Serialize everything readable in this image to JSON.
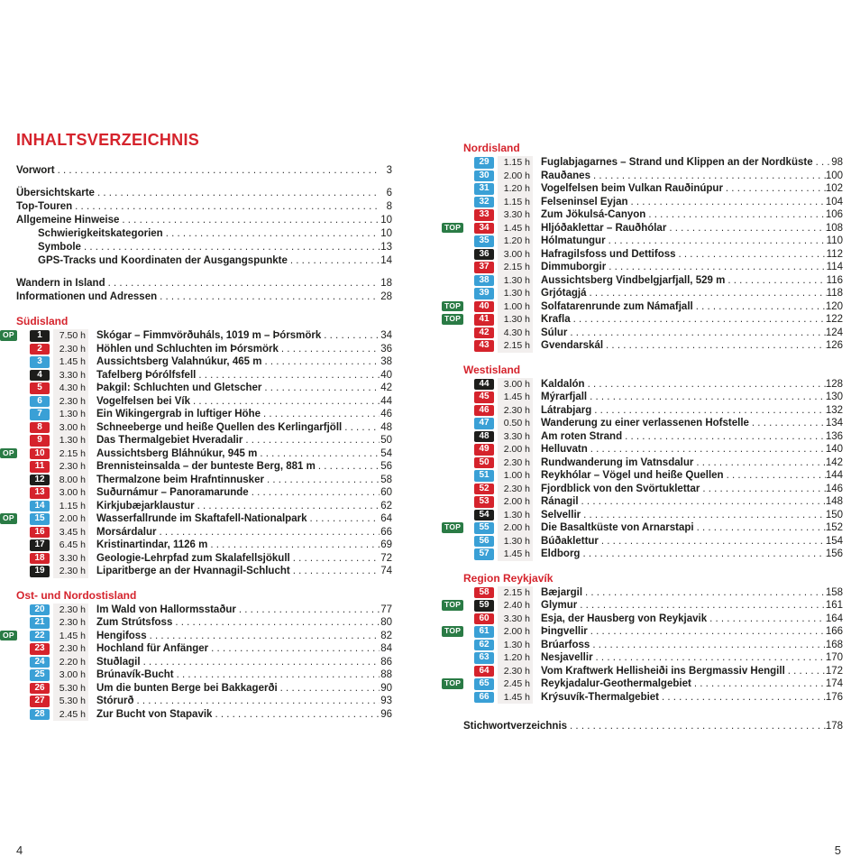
{
  "page_title": "INHALTSVERZEICHNIS",
  "colors": {
    "accent": "#d5232c",
    "red": "#d5232c",
    "blue": "#3aa0d6",
    "black": "#1d1d1b",
    "green": "#2a7b45",
    "time_band": "#f2efee"
  },
  "left_page": {
    "page_number": "4",
    "top_label": "OP",
    "front_matter": [
      {
        "label": "Vorwort",
        "page": "3"
      },
      {
        "label": "Übersichtskarte",
        "page": "6",
        "gap_before": true
      },
      {
        "label": "Top-Touren",
        "page": "8"
      },
      {
        "label": "Allgemeine Hinweise",
        "page": "10"
      },
      {
        "label": "Schwierigkeitskategorien",
        "page": "10",
        "indent": true
      },
      {
        "label": "Symbole",
        "page": "13",
        "indent": true
      },
      {
        "label": "GPS-Tracks und Koordinaten der Ausgangspunkte",
        "page": "14",
        "indent": true
      },
      {
        "label": "Wandern in Island",
        "page": "18",
        "gap_before": true
      },
      {
        "label": "Informationen und Adressen",
        "page": "28"
      }
    ],
    "sections": [
      {
        "header": "Südisland",
        "tours": [
          {
            "num": "1",
            "time": "7.50 h",
            "title": "Skógar – Fimmvörðuháls, 1019 m – Þórsmörk",
            "page": "34",
            "color": "black",
            "top": true
          },
          {
            "num": "2",
            "time": "2.30 h",
            "title": "Höhlen und Schluchten im Þórsmörk",
            "page": "36",
            "color": "red"
          },
          {
            "num": "3",
            "time": "1.45 h",
            "title": "Aussichtsberg Valahnúkur, 465 m",
            "page": "38",
            "color": "blue"
          },
          {
            "num": "4",
            "time": "3.30 h",
            "title": "Tafelberg Þórólfsfell",
            "page": "40",
            "color": "black"
          },
          {
            "num": "5",
            "time": "4.30 h",
            "title": "Þakgil: Schluchten und Gletscher",
            "page": "42",
            "color": "red"
          },
          {
            "num": "6",
            "time": "2.30 h",
            "title": "Vogelfelsen bei Vík",
            "page": "44",
            "color": "blue"
          },
          {
            "num": "7",
            "time": "1.30 h",
            "title": "Ein Wikingergrab in luftiger Höhe",
            "page": "46",
            "color": "blue"
          },
          {
            "num": "8",
            "time": "3.00 h",
            "title": "Schneeberge und heiße Quellen des Kerlingarfjöll",
            "page": "48",
            "color": "red"
          },
          {
            "num": "9",
            "time": "1.30 h",
            "title": "Das Thermalgebiet Hveradalir",
            "page": "50",
            "color": "red"
          },
          {
            "num": "10",
            "time": "2.15 h",
            "title": "Aussichtsberg Bláhnúkur, 945 m",
            "page": "54",
            "color": "red",
            "top": true
          },
          {
            "num": "11",
            "time": "2.30 h",
            "title": "Brennisteinsalda – der bunteste Berg, 881 m",
            "page": "56",
            "color": "red"
          },
          {
            "num": "12",
            "time": "8.00 h",
            "title": "Thermalzone beim Hrafntinnusker",
            "page": "58",
            "color": "black"
          },
          {
            "num": "13",
            "time": "3.00 h",
            "title": "Suðurnámur – Panoramarunde",
            "page": "60",
            "color": "red"
          },
          {
            "num": "14",
            "time": "1.15 h",
            "title": "Kirkjubæjarklaustur",
            "page": "62",
            "color": "blue"
          },
          {
            "num": "15",
            "time": "2.00 h",
            "title": "Wasserfallrunde im Skaftafell-Nationalpark",
            "page": "64",
            "color": "blue",
            "top": true
          },
          {
            "num": "16",
            "time": "3.45 h",
            "title": "Morsárdalur",
            "page": "66",
            "color": "red"
          },
          {
            "num": "17",
            "time": "6.45 h",
            "title": "Kristinartindar, 1126 m",
            "page": "69",
            "color": "black"
          },
          {
            "num": "18",
            "time": "3.30 h",
            "title": "Geologie-Lehrpfad zum Skalafellsjökull",
            "page": "72",
            "color": "red"
          },
          {
            "num": "19",
            "time": "2.30 h",
            "title": "Liparitberge an der Hvannagil-Schlucht",
            "page": "74",
            "color": "black"
          }
        ]
      },
      {
        "header": "Ost- und Nordostisland",
        "tours": [
          {
            "num": "20",
            "time": "2.30 h",
            "title": "Im Wald von Hallormsstaður",
            "page": "77",
            "color": "blue"
          },
          {
            "num": "21",
            "time": "2.30 h",
            "title": "Zum Strútsfoss",
            "page": "80",
            "color": "blue"
          },
          {
            "num": "22",
            "time": "1.45 h",
            "title": "Hengifoss",
            "page": "82",
            "color": "blue",
            "top": true
          },
          {
            "num": "23",
            "time": "2.30 h",
            "title": "Hochland für Anfänger",
            "page": "84",
            "color": "red"
          },
          {
            "num": "24",
            "time": "2.20 h",
            "title": "Stuðlagil",
            "page": "86",
            "color": "blue"
          },
          {
            "num": "25",
            "time": "3.00 h",
            "title": "Brúnavík-Bucht",
            "page": "88",
            "color": "blue"
          },
          {
            "num": "26",
            "time": "5.30 h",
            "title": "Um die bunten Berge bei Bakkagerði",
            "page": "90",
            "color": "red"
          },
          {
            "num": "27",
            "time": "5.30 h",
            "title": "Stórurð",
            "page": "93",
            "color": "red"
          },
          {
            "num": "28",
            "time": "2.45 h",
            "title": "Zur Bucht von Stapavik",
            "page": "96",
            "color": "blue"
          }
        ]
      }
    ]
  },
  "right_page": {
    "page_number": "5",
    "top_label": "TOP",
    "sections": [
      {
        "header": "Nordisland",
        "tours": [
          {
            "num": "29",
            "time": "1.15 h",
            "title": "Fuglabjagarnes – Strand und Klippen an der Nordküste",
            "page": "98",
            "color": "blue"
          },
          {
            "num": "30",
            "time": "2.00 h",
            "title": "Rauðanes",
            "page": "100",
            "color": "blue"
          },
          {
            "num": "31",
            "time": "1.20 h",
            "title": "Vogelfelsen beim Vulkan Rauðinúpur",
            "page": "102",
            "color": "blue"
          },
          {
            "num": "32",
            "time": "1.15 h",
            "title": "Felseninsel Eyjan",
            "page": "104",
            "color": "blue"
          },
          {
            "num": "33",
            "time": "3.30 h",
            "title": "Zum Jökulsá-Canyon",
            "page": "106",
            "color": "red"
          },
          {
            "num": "34",
            "time": "1.45 h",
            "title": "Hljóðaklettar – Rauðhólar",
            "page": "108",
            "color": "red",
            "top": true
          },
          {
            "num": "35",
            "time": "1.20 h",
            "title": "Hólmatungur",
            "page": "110",
            "color": "blue"
          },
          {
            "num": "36",
            "time": "3.00 h",
            "title": "Hafragilsfoss und Dettifoss",
            "page": "112",
            "color": "black"
          },
          {
            "num": "37",
            "time": "2.15 h",
            "title": "Dimmuborgir",
            "page": "114",
            "color": "red"
          },
          {
            "num": "38",
            "time": "1.30 h",
            "title": "Aussichtsberg Vindbelgjarfjall, 529 m",
            "page": "116",
            "color": "blue"
          },
          {
            "num": "39",
            "time": "1.30 h",
            "title": "Grjótagjá",
            "page": "118",
            "color": "blue"
          },
          {
            "num": "40",
            "time": "1.00 h",
            "title": "Solfatarenrunde zum Námafjall",
            "page": "120",
            "color": "red",
            "top": true
          },
          {
            "num": "41",
            "time": "1.30 h",
            "title": "Krafla",
            "page": "122",
            "color": "red",
            "top": true
          },
          {
            "num": "42",
            "time": "4.30 h",
            "title": "Súlur",
            "page": "124",
            "color": "red"
          },
          {
            "num": "43",
            "time": "2.15 h",
            "title": "Gvendarskál",
            "page": "126",
            "color": "red"
          }
        ]
      },
      {
        "header": "Westisland",
        "tours": [
          {
            "num": "44",
            "time": "3.00 h",
            "title": "Kaldalón",
            "page": "128",
            "color": "black"
          },
          {
            "num": "45",
            "time": "1.45 h",
            "title": "Mýrarfjall",
            "page": "130",
            "color": "red"
          },
          {
            "num": "46",
            "time": "2.30 h",
            "title": "Látrabjarg",
            "page": "132",
            "color": "red"
          },
          {
            "num": "47",
            "time": "0.50 h",
            "title": "Wanderung zu einer verlassenen Hofstelle",
            "page": "134",
            "color": "blue"
          },
          {
            "num": "48",
            "time": "3.30 h",
            "title": "Am roten Strand",
            "page": "136",
            "color": "black"
          },
          {
            "num": "49",
            "time": "2.00 h",
            "title": "Helluvatn",
            "page": "140",
            "color": "red"
          },
          {
            "num": "50",
            "time": "2.30 h",
            "title": "Rundwanderung im Vatnsdalur",
            "page": "142",
            "color": "red"
          },
          {
            "num": "51",
            "time": "1.00 h",
            "title": "Reykhólar – Vögel und heiße Quellen",
            "page": "144",
            "color": "blue"
          },
          {
            "num": "52",
            "time": "2.30 h",
            "title": "Fjordblick von den Svörtuklettar",
            "page": "146",
            "color": "red"
          },
          {
            "num": "53",
            "time": "2.00 h",
            "title": "Ránagil",
            "page": "148",
            "color": "red"
          },
          {
            "num": "54",
            "time": "1.30 h",
            "title": "Selvellir",
            "page": "150",
            "color": "black"
          },
          {
            "num": "55",
            "time": "2.00 h",
            "title": "Die Basaltküste von Arnarstapi",
            "page": "152",
            "color": "blue",
            "top": true
          },
          {
            "num": "56",
            "time": "1.30 h",
            "title": "Búðaklettur",
            "page": "154",
            "color": "blue"
          },
          {
            "num": "57",
            "time": "1.45 h",
            "title": "Eldborg",
            "page": "156",
            "color": "blue"
          }
        ]
      },
      {
        "header": "Region Reykjavík",
        "tours": [
          {
            "num": "58",
            "time": "2.15 h",
            "title": "Bæjargil",
            "page": "158",
            "color": "red"
          },
          {
            "num": "59",
            "time": "2.40 h",
            "title": "Glymur",
            "page": "161",
            "color": "black",
            "top": true
          },
          {
            "num": "60",
            "time": "3.30 h",
            "title": "Esja, der Hausberg von Reykjavik",
            "page": "164",
            "color": "red"
          },
          {
            "num": "61",
            "time": "2.00 h",
            "title": "Þingvellir",
            "page": "166",
            "color": "blue",
            "top": true
          },
          {
            "num": "62",
            "time": "1.30 h",
            "title": "Brúarfoss",
            "page": "168",
            "color": "blue"
          },
          {
            "num": "63",
            "time": "1.20 h",
            "title": "Nesjavellir",
            "page": "170",
            "color": "blue"
          },
          {
            "num": "64",
            "time": "2.30 h",
            "title": "Vom Kraftwerk Hellisheiði ins Bergmassiv Hengill",
            "page": "172",
            "color": "red"
          },
          {
            "num": "65",
            "time": "2.45 h",
            "title": "Reykjadalur-Geothermalgebiet",
            "page": "174",
            "color": "blue",
            "top": true
          },
          {
            "num": "66",
            "time": "1.45 h",
            "title": "Krýsuvík-Thermalgebiet",
            "page": "176",
            "color": "blue"
          }
        ]
      }
    ],
    "footer_entries": [
      {
        "label": "Stichwortverzeichnis",
        "page": "178"
      }
    ]
  }
}
